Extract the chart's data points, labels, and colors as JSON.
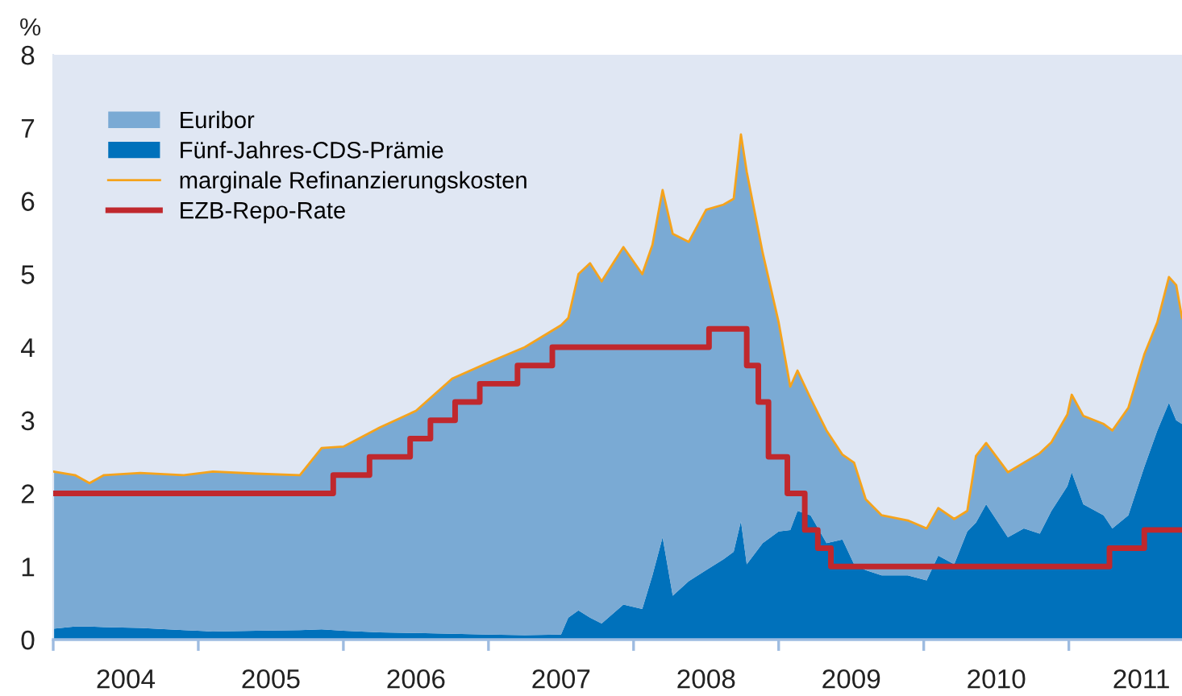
{
  "chart_data": {
    "type": "area",
    "stacked": true,
    "ylabel": "%",
    "x": [
      2004.0,
      2004.15,
      2004.25,
      2004.35,
      2004.6,
      2004.9,
      2005.1,
      2005.4,
      2005.7,
      2005.85,
      2006.0,
      2006.25,
      2006.5,
      2006.75,
      2007.0,
      2007.25,
      2007.5,
      2007.55,
      2007.62,
      2007.7,
      2007.78,
      2007.93,
      2008.06,
      2008.13,
      2008.2,
      2008.27,
      2008.38,
      2008.5,
      2008.62,
      2008.69,
      2008.74,
      2008.78,
      2008.89,
      2009.0,
      2009.08,
      2009.13,
      2009.22,
      2009.33,
      2009.44,
      2009.52,
      2009.6,
      2009.71,
      2009.89,
      2010.02,
      2010.1,
      2010.21,
      2010.3,
      2010.36,
      2010.43,
      2010.58,
      2010.69,
      2010.8,
      2010.88,
      2010.99,
      2011.02,
      2011.1,
      2011.24,
      2011.3,
      2011.41,
      2011.52,
      2011.61,
      2011.69,
      2011.74,
      2011.78
    ],
    "series": [
      {
        "name": "Fünf-Jahres-CDS-Prämie",
        "color": "#0071bb",
        "values": [
          0.15,
          0.18,
          0.18,
          0.17,
          0.16,
          0.13,
          0.11,
          0.12,
          0.13,
          0.14,
          0.12,
          0.1,
          0.09,
          0.08,
          0.07,
          0.06,
          0.07,
          0.3,
          0.4,
          0.3,
          0.22,
          0.48,
          0.42,
          0.88,
          1.4,
          0.6,
          0.8,
          0.95,
          1.1,
          1.2,
          1.62,
          1.03,
          1.32,
          1.48,
          1.5,
          1.76,
          1.7,
          1.32,
          1.37,
          1.03,
          0.95,
          0.88,
          0.88,
          0.81,
          1.15,
          1.03,
          1.48,
          1.6,
          1.85,
          1.4,
          1.52,
          1.45,
          1.76,
          2.1,
          2.29,
          1.85,
          1.7,
          1.52,
          1.7,
          2.36,
          2.86,
          3.24,
          3.0,
          2.95
        ]
      },
      {
        "name": "Euribor",
        "color": "#7aaad4",
        "values": [
          2.15,
          2.07,
          1.96,
          2.08,
          2.12,
          2.12,
          2.19,
          2.15,
          2.12,
          2.48,
          2.52,
          2.8,
          3.04,
          3.49,
          3.72,
          3.94,
          4.23,
          4.1,
          4.6,
          4.85,
          4.68,
          4.89,
          4.58,
          4.52,
          4.75,
          4.95,
          4.64,
          4.93,
          4.85,
          4.83,
          5.29,
          5.37,
          3.97,
          2.86,
          1.96,
          1.92,
          1.6,
          1.54,
          1.16,
          1.39,
          0.97,
          0.82,
          0.75,
          0.71,
          0.65,
          0.62,
          0.28,
          0.91,
          0.84,
          0.89,
          0.9,
          1.1,
          0.94,
          0.98,
          1.06,
          1.21,
          1.25,
          1.34,
          1.47,
          1.54,
          1.48,
          1.72,
          1.85,
          1.45
        ]
      },
      {
        "name": "marginale Refinanzierungskosten",
        "type": "line",
        "color": "#f5a31c",
        "values": [
          2.3,
          2.25,
          2.14,
          2.25,
          2.28,
          2.25,
          2.3,
          2.27,
          2.25,
          2.62,
          2.64,
          2.9,
          3.13,
          3.57,
          3.79,
          4.0,
          4.3,
          4.4,
          5.0,
          5.15,
          4.9,
          5.37,
          5.0,
          5.4,
          6.15,
          5.55,
          5.44,
          5.88,
          5.95,
          6.03,
          6.91,
          6.4,
          5.29,
          4.34,
          3.46,
          3.68,
          3.3,
          2.86,
          2.53,
          2.42,
          1.92,
          1.7,
          1.63,
          1.52,
          1.8,
          1.65,
          1.76,
          2.51,
          2.69,
          2.29,
          2.42,
          2.55,
          2.7,
          3.08,
          3.35,
          3.06,
          2.95,
          2.86,
          3.17,
          3.9,
          4.34,
          4.96,
          4.85,
          4.4
        ]
      },
      {
        "name": "EZB-Repo-Rate",
        "type": "step",
        "color": "#c0282d",
        "x": [
          2004.0,
          2005.93,
          2006.18,
          2006.46,
          2006.6,
          2006.77,
          2006.94,
          2007.2,
          2007.44,
          2008.52,
          2008.78,
          2008.86,
          2008.93,
          2009.06,
          2009.18,
          2009.27,
          2009.36,
          2011.28,
          2011.52,
          2011.78
        ],
        "values": [
          2.0,
          2.25,
          2.5,
          2.75,
          3.0,
          3.25,
          3.5,
          3.75,
          4.0,
          4.25,
          3.75,
          3.25,
          2.5,
          2.0,
          1.5,
          1.25,
          1.0,
          1.25,
          1.5,
          1.5
        ]
      }
    ],
    "xlim": [
      2004.0,
      2011.78
    ],
    "xticks": [
      {
        "value": 2004.0,
        "label": null
      },
      {
        "value": 2004.5,
        "label": "2004"
      },
      {
        "value": 2005.0,
        "label": null
      },
      {
        "value": 2005.5,
        "label": "2005"
      },
      {
        "value": 2006.0,
        "label": null
      },
      {
        "value": 2006.5,
        "label": "2006"
      },
      {
        "value": 2007.0,
        "label": null
      },
      {
        "value": 2007.5,
        "label": "2007"
      },
      {
        "value": 2008.0,
        "label": null
      },
      {
        "value": 2008.5,
        "label": "2008"
      },
      {
        "value": 2009.0,
        "label": null
      },
      {
        "value": 2009.5,
        "label": "2009"
      },
      {
        "value": 2010.0,
        "label": null
      },
      {
        "value": 2010.5,
        "label": "2010"
      },
      {
        "value": 2011.0,
        "label": null
      },
      {
        "value": 2011.5,
        "label": "2011"
      }
    ],
    "ylim": [
      0,
      8
    ],
    "yticks": [
      0,
      1,
      2,
      3,
      4,
      5,
      6,
      7,
      8
    ],
    "grid": false,
    "legend": "top left"
  }
}
